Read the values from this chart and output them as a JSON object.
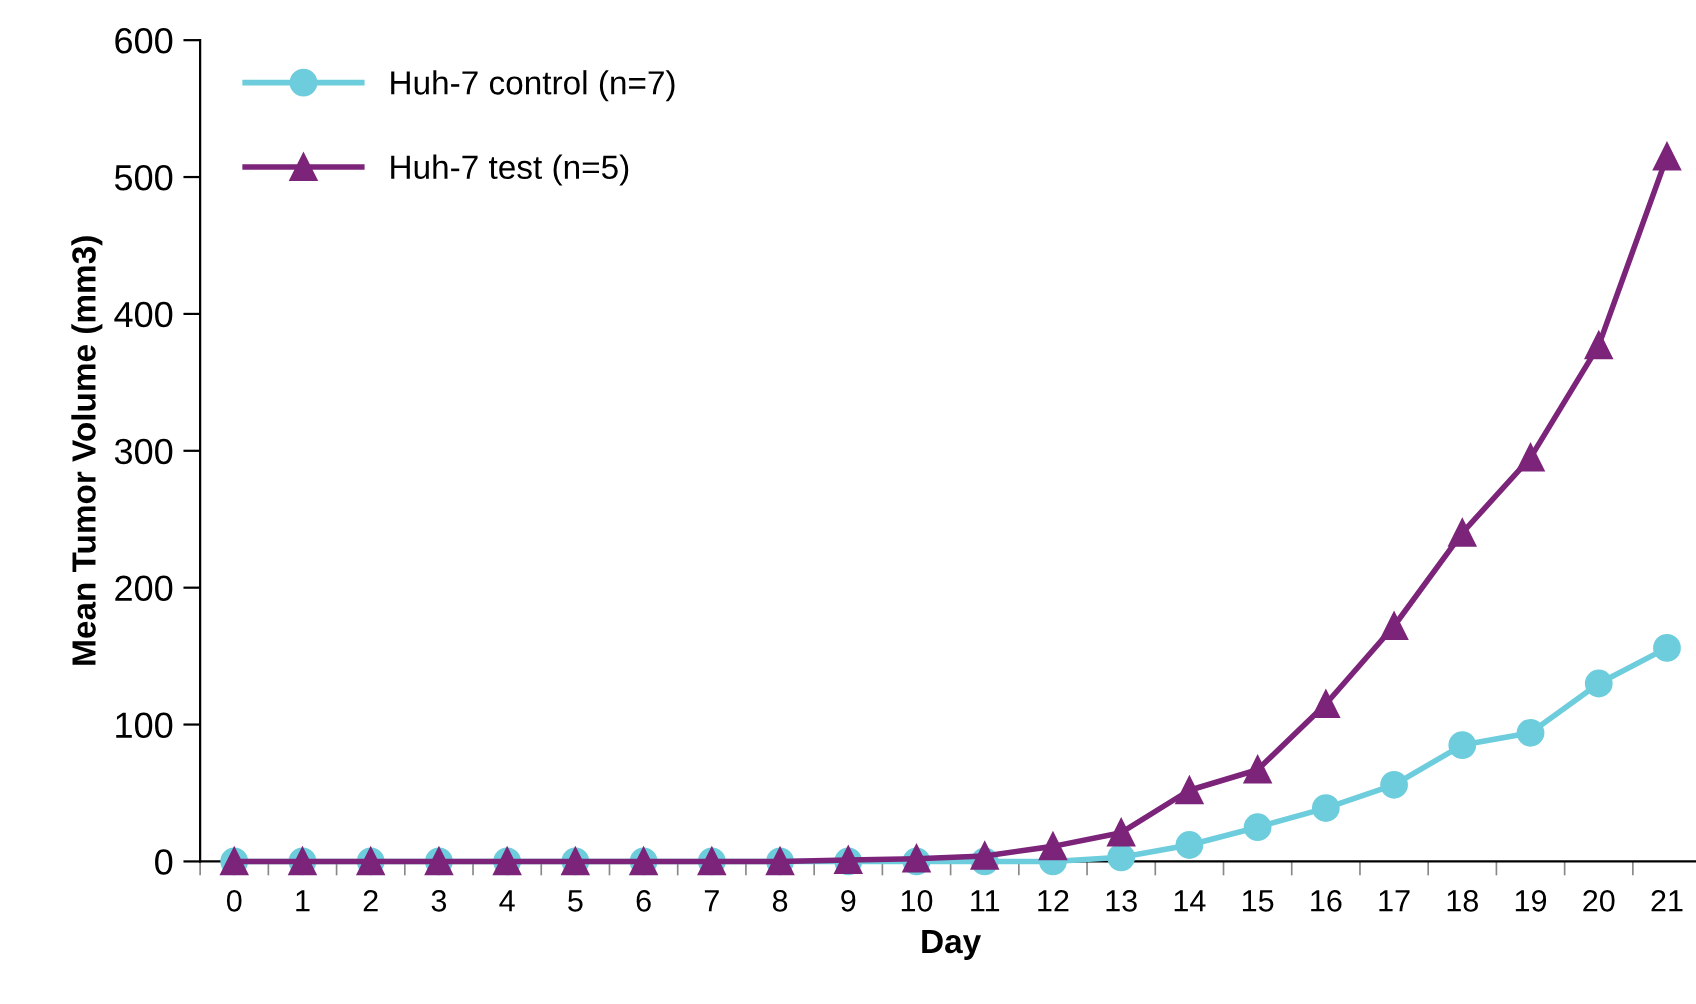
{
  "chart_data": {
    "type": "line",
    "xlabel": "Day",
    "ylabel": "Mean Tumor Volume (mm3)",
    "categories": [
      "0",
      "1",
      "2",
      "3",
      "4",
      "5",
      "6",
      "7",
      "8",
      "9",
      "10",
      "11",
      "12",
      "13",
      "14",
      "15",
      "16",
      "17",
      "18",
      "19",
      "20",
      "21"
    ],
    "ylim": [
      0,
      600
    ],
    "yticks": [
      0,
      100,
      200,
      300,
      400,
      500,
      600
    ],
    "grid": false,
    "legend": "top left",
    "series": [
      {
        "name": "Huh-7 control (n=7)",
        "color": "#6dcddc",
        "marker": "circle",
        "values": [
          0,
          0,
          0,
          0,
          0,
          0,
          0,
          0,
          0,
          0,
          0,
          0,
          0,
          3,
          12,
          25,
          39,
          56,
          85,
          94,
          130,
          156
        ]
      },
      {
        "name": "Huh-7 test (n=5)",
        "color": "#7b2479",
        "marker": "triangle",
        "values": [
          0,
          0,
          0,
          0,
          0,
          0,
          0,
          0,
          0,
          1,
          2,
          4,
          11,
          21,
          52,
          67,
          115,
          172,
          240,
          295,
          377,
          515
        ]
      }
    ]
  }
}
